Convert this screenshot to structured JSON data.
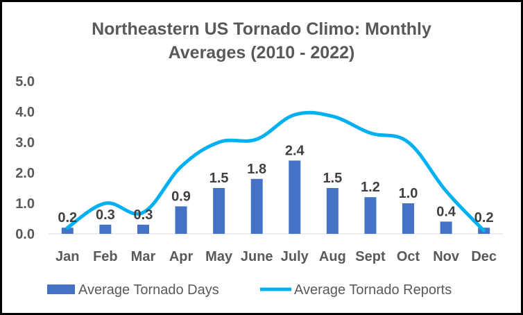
{
  "chart_data": {
    "type": "bar",
    "title_line1": "Northeastern US Tornado Climo: Monthly",
    "title_line2": "Averages (2010 - 2022)",
    "categories": [
      "Jan",
      "Feb",
      "Mar",
      "Apr",
      "May",
      "June",
      "July",
      "Aug",
      "Sept",
      "Oct",
      "Nov",
      "Dec"
    ],
    "series": [
      {
        "name": "Average Tornado Days",
        "kind": "bar",
        "color": "#4472C4",
        "values": [
          0.2,
          0.3,
          0.3,
          0.9,
          1.5,
          1.8,
          2.4,
          1.5,
          1.2,
          1.0,
          0.4,
          0.2
        ],
        "data_labels": [
          "0.2",
          "0.3",
          "0.3",
          "0.9",
          "1.5",
          "1.8",
          "2.4",
          "1.5",
          "1.2",
          "1.0",
          "0.4",
          "0.2"
        ]
      },
      {
        "name": "Average Tornado Reports",
        "kind": "line",
        "color": "#00B0F0",
        "values": [
          0.2,
          1.0,
          0.7,
          2.2,
          3.0,
          3.1,
          3.9,
          3.85,
          3.3,
          3.0,
          1.4,
          0.1
        ]
      }
    ],
    "y_ticks": [
      "0.0",
      "1.0",
      "2.0",
      "3.0",
      "4.0",
      "5.0"
    ],
    "ylim": [
      0,
      5
    ],
    "grid": false,
    "legend_position": "bottom"
  }
}
